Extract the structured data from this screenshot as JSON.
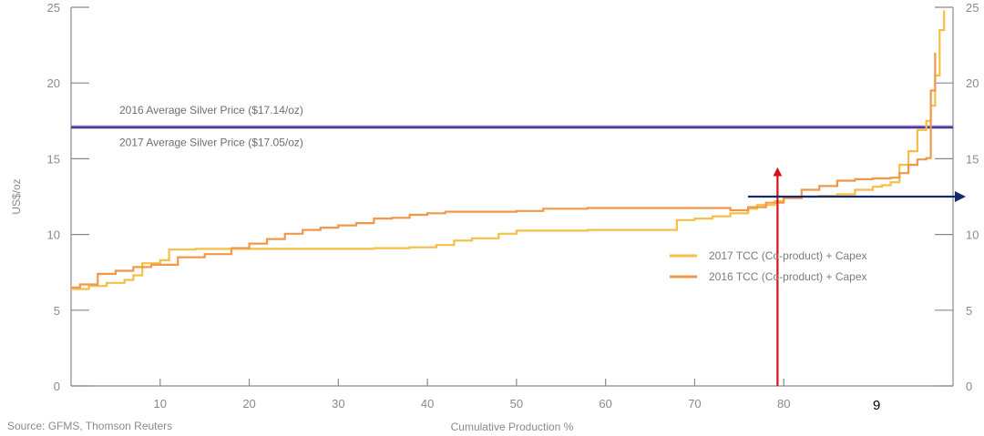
{
  "chart_data": {
    "type": "line",
    "title": "",
    "xlabel": "Cumulative Production %",
    "ylabel": "US$/oz",
    "xlim": [
      0,
      99
    ],
    "ylim": [
      0,
      25
    ],
    "x_ticks": [
      10,
      20,
      30,
      40,
      50,
      60,
      70,
      80
    ],
    "y_ticks": [
      0,
      5,
      10,
      15,
      20,
      25
    ],
    "grid": false,
    "legend_position": "right-middle",
    "source": "Source: GFMS, Thomson Reuters",
    "reference_lines": [
      {
        "label": "2016 Average Silver Price ($17.14/oz)",
        "value": 17.14,
        "color": "#9b6fd0"
      },
      {
        "label": "2017 Average Silver Price ($17.05/oz)",
        "value": 17.05,
        "color": "#3a3a7a"
      }
    ],
    "series": [
      {
        "name": "2017 TCC (Co-product) + Capex",
        "color": "#f5be46",
        "x": [
          0,
          2,
          4,
          6,
          7,
          8,
          10,
          11,
          14,
          18,
          22,
          26,
          30,
          34,
          38,
          41,
          43,
          45,
          48,
          50,
          54,
          58,
          62,
          65,
          68,
          70,
          72,
          74,
          76,
          77,
          79,
          80,
          82,
          84,
          86,
          88,
          90,
          91,
          92,
          93,
          94,
          95,
          96,
          96.5,
          97,
          97.5,
          98
        ],
        "y": [
          6.4,
          6.6,
          6.8,
          7.0,
          7.3,
          8.1,
          8.3,
          9.0,
          9.05,
          9.05,
          9.05,
          9.05,
          9.05,
          9.1,
          9.15,
          9.3,
          9.6,
          9.75,
          10.05,
          10.25,
          10.25,
          10.3,
          10.3,
          10.3,
          10.95,
          11.05,
          11.2,
          11.4,
          11.7,
          11.95,
          12.2,
          12.45,
          12.5,
          12.55,
          12.65,
          12.95,
          13.15,
          13.25,
          13.45,
          14.6,
          15.5,
          16.9,
          17.5,
          18.5,
          20.5,
          23.5,
          24.8
        ]
      },
      {
        "name": "2016 TCC (Co-product) + Capex",
        "color": "#f0984a",
        "x": [
          0,
          1,
          3,
          5,
          7,
          9,
          12,
          15,
          18,
          20,
          22,
          24,
          26,
          28,
          30,
          32,
          34,
          36,
          38,
          40,
          42,
          50,
          53,
          58,
          62,
          66,
          70,
          74,
          76,
          78,
          80,
          82,
          84,
          86,
          88,
          90,
          92,
          93,
          94,
          95,
          96,
          96.5,
          97
        ],
        "y": [
          6.5,
          6.7,
          7.4,
          7.6,
          7.85,
          8.0,
          8.5,
          8.7,
          9.1,
          9.4,
          9.7,
          10.05,
          10.3,
          10.45,
          10.6,
          10.75,
          11.05,
          11.1,
          11.3,
          11.4,
          11.5,
          11.55,
          11.7,
          11.75,
          11.75,
          11.75,
          11.75,
          11.6,
          11.8,
          12.1,
          12.4,
          12.95,
          13.2,
          13.55,
          13.65,
          13.7,
          13.75,
          14.05,
          14.6,
          14.95,
          15.05,
          19.5,
          22.0
        ]
      }
    ],
    "annotations": {
      "vertical_arrow": {
        "x": 79.3,
        "y_from": 0,
        "y_to": 14.5,
        "color": "#d90f1c"
      },
      "horizontal_arrow": {
        "y": 12.5,
        "x_from": 76,
        "x_to": 99,
        "color": "#142a6b"
      },
      "overlay_text": {
        "text": "9",
        "x": 90,
        "y": -1.3
      }
    }
  }
}
